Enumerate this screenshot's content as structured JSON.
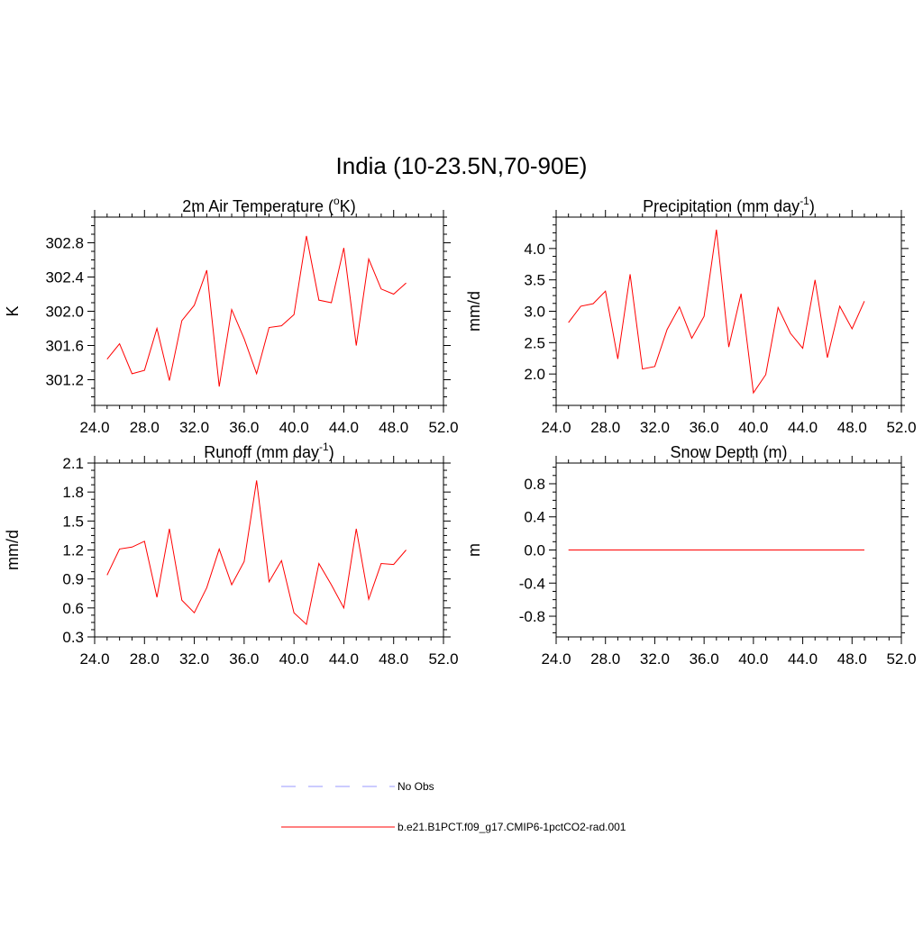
{
  "page_title": "India (10-23.5N,70-90E)",
  "legend": {
    "entries": [
      {
        "label": "No Obs",
        "color": "#9999ff",
        "dash": true
      },
      {
        "label": "b.e21.B1PCT.f09_g17.CMIP6-1pctCO2-rad.001",
        "color": "#ff0000",
        "dash": false
      }
    ]
  },
  "chart_data": [
    {
      "type": "line",
      "title": "2m Air Temperature (",
      "title_sup": "o",
      "title_end": "K)",
      "ylabel": "K",
      "xlim": [
        24,
        52
      ],
      "ylim": [
        300.9,
        303.1
      ],
      "xticks": [
        "24.0",
        "28.0",
        "32.0",
        "36.0",
        "40.0",
        "44.0",
        "48.0",
        "52.0"
      ],
      "yticks": [
        "301.2",
        "301.6",
        "302.0",
        "302.4",
        "302.8"
      ],
      "x": [
        25,
        26,
        27,
        28,
        29,
        30,
        31,
        32,
        33,
        34,
        35,
        36,
        37,
        38,
        39,
        40,
        41,
        42,
        43,
        44,
        45,
        46,
        47,
        48,
        49
      ],
      "series": [
        {
          "color": "#ff0000",
          "values": [
            301.44,
            301.62,
            301.27,
            301.31,
            301.8,
            301.19,
            301.89,
            302.07,
            302.48,
            301.12,
            302.02,
            301.68,
            301.27,
            301.81,
            301.83,
            301.96,
            302.88,
            302.13,
            302.1,
            302.74,
            301.6,
            302.61,
            302.26,
            302.2,
            302.33
          ]
        }
      ]
    },
    {
      "type": "line",
      "title": "Precipitation (mm day",
      "title_sup": "-1",
      "title_end": ")",
      "ylabel": "mm/d",
      "xlim": [
        24,
        52
      ],
      "ylim": [
        1.5,
        4.5
      ],
      "xticks": [
        "24.0",
        "28.0",
        "32.0",
        "36.0",
        "40.0",
        "44.0",
        "48.0",
        "52.0"
      ],
      "yticks": [
        "2.0",
        "2.5",
        "3.0",
        "3.5",
        "4.0"
      ],
      "x": [
        25,
        26,
        27,
        28,
        29,
        30,
        31,
        32,
        33,
        34,
        35,
        36,
        37,
        38,
        39,
        40,
        41,
        42,
        43,
        44,
        45,
        46,
        47,
        48,
        49
      ],
      "series": [
        {
          "color": "#ff0000",
          "values": [
            2.82,
            3.08,
            3.12,
            3.32,
            2.24,
            3.59,
            2.08,
            2.12,
            2.71,
            3.07,
            2.57,
            2.92,
            4.3,
            2.43,
            3.28,
            1.7,
            1.99,
            3.06,
            2.65,
            2.41,
            3.5,
            2.26,
            3.08,
            2.72,
            3.16
          ]
        }
      ]
    },
    {
      "type": "line",
      "title": "Runoff (mm day",
      "title_sup": "-1",
      "title_end": ")",
      "ylabel": "mm/d",
      "xlim": [
        24,
        52
      ],
      "ylim": [
        0.3,
        2.1
      ],
      "xticks": [
        "24.0",
        "28.0",
        "32.0",
        "36.0",
        "40.0",
        "44.0",
        "48.0",
        "52.0"
      ],
      "yticks": [
        "0.3",
        "0.6",
        "0.9",
        "1.2",
        "1.5",
        "1.8",
        "2.1"
      ],
      "x": [
        25,
        26,
        27,
        28,
        29,
        30,
        31,
        32,
        33,
        34,
        35,
        36,
        37,
        38,
        39,
        40,
        41,
        42,
        43,
        44,
        45,
        46,
        47,
        48,
        49
      ],
      "series": [
        {
          "color": "#ff0000",
          "values": [
            0.94,
            1.21,
            1.23,
            1.29,
            0.71,
            1.42,
            0.68,
            0.55,
            0.81,
            1.21,
            0.84,
            1.08,
            1.92,
            0.87,
            1.09,
            0.55,
            0.43,
            1.06,
            0.84,
            0.6,
            1.42,
            0.69,
            1.06,
            1.05,
            1.2
          ]
        }
      ]
    },
    {
      "type": "line",
      "title": "Snow Depth (m)",
      "title_sup": "",
      "title_end": "",
      "ylabel": "m",
      "xlim": [
        24,
        52
      ],
      "ylim": [
        -1.05,
        1.05
      ],
      "xticks": [
        "24.0",
        "28.0",
        "32.0",
        "36.0",
        "40.0",
        "44.0",
        "48.0",
        "52.0"
      ],
      "yticks": [
        "-0.8",
        "-0.4",
        "0.0",
        "0.4",
        "0.8"
      ],
      "x": [
        25,
        26,
        27,
        28,
        29,
        30,
        31,
        32,
        33,
        34,
        35,
        36,
        37,
        38,
        39,
        40,
        41,
        42,
        43,
        44,
        45,
        46,
        47,
        48,
        49
      ],
      "series": [
        {
          "color": "#ff0000",
          "values": [
            0,
            0,
            0,
            0,
            0,
            0,
            0,
            0,
            0,
            0,
            0,
            0,
            0,
            0,
            0,
            0,
            0,
            0,
            0,
            0,
            0,
            0,
            0,
            0,
            0
          ]
        }
      ]
    }
  ]
}
